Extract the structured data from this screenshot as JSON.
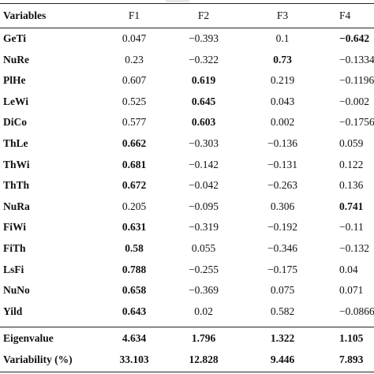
{
  "table": {
    "headers": [
      "Variables",
      "F1",
      "F2",
      "F3",
      "F4"
    ],
    "rows": [
      {
        "label": "GeTi",
        "values": [
          "0.047",
          "−0.393",
          "0.1",
          "−0.642"
        ],
        "bold": [
          false,
          false,
          false,
          true
        ]
      },
      {
        "label": "NuRe",
        "values": [
          "0.23",
          "−0.322",
          "0.73",
          "−0.1334"
        ],
        "bold": [
          false,
          false,
          true,
          false
        ]
      },
      {
        "label": "PlHe",
        "values": [
          "0.607",
          "0.619",
          "0.219",
          "−0.1196"
        ],
        "bold": [
          false,
          true,
          false,
          false
        ]
      },
      {
        "label": "LeWi",
        "values": [
          "0.525",
          "0.645",
          "0.043",
          "−0.002"
        ],
        "bold": [
          false,
          true,
          false,
          false
        ]
      },
      {
        "label": "DiCo",
        "values": [
          "0.577",
          "0.603",
          "0.002",
          "−0.1756"
        ],
        "bold": [
          false,
          true,
          false,
          false
        ]
      },
      {
        "label": "ThLe",
        "values": [
          "0.662",
          "−0.303",
          "−0.136",
          "0.059"
        ],
        "bold": [
          true,
          false,
          false,
          false
        ]
      },
      {
        "label": "ThWi",
        "values": [
          "0.681",
          "−0.142",
          "−0.131",
          "0.122"
        ],
        "bold": [
          true,
          false,
          false,
          false
        ]
      },
      {
        "label": "ThTh",
        "values": [
          "0.672",
          "−0.042",
          "−0.263",
          "0.136"
        ],
        "bold": [
          true,
          false,
          false,
          false
        ]
      },
      {
        "label": "NuRa",
        "values": [
          "0.205",
          "−0.095",
          "0.306",
          "0.741"
        ],
        "bold": [
          false,
          false,
          false,
          true
        ]
      },
      {
        "label": "FiWi",
        "values": [
          "0.631",
          "−0.319",
          "−0.192",
          "−0.11"
        ],
        "bold": [
          true,
          false,
          false,
          false
        ]
      },
      {
        "label": "FiTh",
        "values": [
          "0.58",
          "0.055",
          "−0.346",
          "−0.132"
        ],
        "bold": [
          true,
          false,
          false,
          false
        ]
      },
      {
        "label": "LsFi",
        "values": [
          "0.788",
          "−0.255",
          "−0.175",
          "0.04"
        ],
        "bold": [
          true,
          false,
          false,
          false
        ]
      },
      {
        "label": "NuNo",
        "values": [
          "0.658",
          "−0.369",
          "0.075",
          "0.071"
        ],
        "bold": [
          true,
          false,
          false,
          false
        ]
      },
      {
        "label": "Yild",
        "values": [
          "0.643",
          "0.02",
          "0.582",
          "−0.0866"
        ],
        "bold": [
          true,
          false,
          false,
          false
        ]
      }
    ],
    "summary": [
      {
        "label": "Eigenvalue",
        "values": [
          "4.634",
          "1.796",
          "1.322",
          "1.105"
        ]
      },
      {
        "label": "Variability (%)",
        "values": [
          "33.103",
          "12.828",
          "9.446",
          "7.893"
        ]
      }
    ]
  }
}
